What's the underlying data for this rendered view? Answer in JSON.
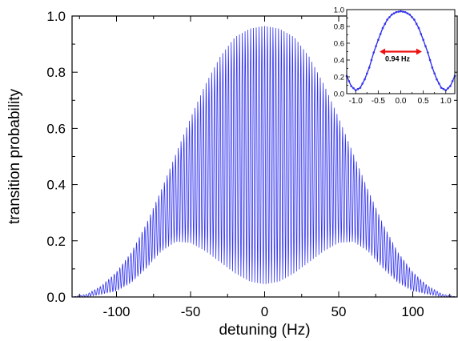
{
  "chart_data": [
    {
      "type": "line",
      "role": "main",
      "xlabel": "detuning (Hz)",
      "ylabel": "transition probability",
      "xlim": [
        -130,
        130
      ],
      "ylim": [
        0,
        1.0
      ],
      "x_ticks": [
        -100,
        -50,
        0,
        50,
        100
      ],
      "x_tick_labels": [
        "-100",
        "-50",
        "0",
        "50",
        "100"
      ],
      "y_ticks": [
        0.0,
        0.2,
        0.4,
        0.6,
        0.8,
        1.0
      ],
      "y_tick_labels": [
        "0.0",
        "0.2",
        "0.4",
        "0.6",
        "0.8",
        "1.0"
      ],
      "grid": false,
      "series": [
        {
          "color": "#3333ee",
          "fringe_period_hz": 1.88,
          "upper_envelope": {
            "x": [
              -130,
              -120,
              -110,
              -100,
              -90,
              -80,
              -70,
              -60,
              -50,
              -40,
              -30,
              -20,
              -10,
              0,
              10,
              20,
              30,
              40,
              50,
              60,
              70,
              80,
              90,
              100,
              110,
              120,
              130
            ],
            "y": [
              0.0,
              0.01,
              0.04,
              0.09,
              0.16,
              0.26,
              0.38,
              0.51,
              0.64,
              0.76,
              0.86,
              0.93,
              0.96,
              0.97,
              0.96,
              0.93,
              0.86,
              0.76,
              0.64,
              0.51,
              0.38,
              0.26,
              0.16,
              0.09,
              0.04,
              0.01,
              0.0
            ]
          },
          "lower_envelope": {
            "x": [
              -130,
              -120,
              -110,
              -100,
              -90,
              -80,
              -70,
              -60,
              -50,
              -40,
              -30,
              -20,
              -10,
              0,
              10,
              20,
              30,
              40,
              50,
              60,
              70,
              80,
              90,
              100,
              110,
              120,
              130
            ],
            "y": [
              0.0,
              0.0,
              0.01,
              0.02,
              0.05,
              0.1,
              0.16,
              0.195,
              0.19,
              0.16,
              0.12,
              0.08,
              0.05,
              0.04,
              0.05,
              0.08,
              0.12,
              0.16,
              0.19,
              0.195,
              0.16,
              0.1,
              0.05,
              0.02,
              0.01,
              0.0,
              0.0
            ]
          }
        }
      ]
    },
    {
      "type": "line",
      "role": "inset",
      "xlim": [
        -1.2,
        1.2
      ],
      "ylim": [
        0,
        1.0
      ],
      "x_ticks": [
        -1.0,
        -0.5,
        0.0,
        0.5,
        1.0
      ],
      "x_tick_labels": [
        "-1.0",
        "-0.5",
        "0.0",
        "0.5",
        "1.0"
      ],
      "y_ticks": [
        0.0,
        0.2,
        0.4,
        0.6,
        0.8,
        1.0
      ],
      "y_tick_labels": [
        "0.0",
        "0.2",
        "0.4",
        "0.6",
        "0.8",
        "1.0"
      ],
      "series": [
        {
          "color": "#3333ee",
          "x": [
            -1.2,
            -1.1,
            -1.0,
            -0.9,
            -0.8,
            -0.7,
            -0.6,
            -0.5,
            -0.4,
            -0.3,
            -0.2,
            -0.1,
            0.0,
            0.1,
            0.2,
            0.3,
            0.4,
            0.5,
            0.6,
            0.7,
            0.8,
            0.9,
            1.0,
            1.1,
            1.2
          ],
          "y": [
            0.21,
            0.09,
            0.04,
            0.07,
            0.17,
            0.31,
            0.49,
            0.64,
            0.78,
            0.88,
            0.94,
            0.97,
            0.98,
            0.97,
            0.94,
            0.88,
            0.78,
            0.64,
            0.49,
            0.31,
            0.17,
            0.07,
            0.04,
            0.09,
            0.21
          ]
        }
      ],
      "annotation": {
        "text": "0.94 Hz",
        "x_from": -0.47,
        "x_to": 0.47,
        "y": 0.5,
        "color": "#ee1111"
      }
    }
  ]
}
